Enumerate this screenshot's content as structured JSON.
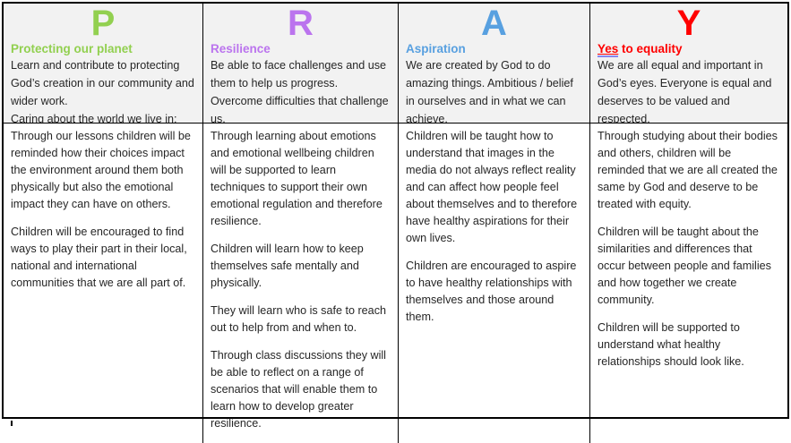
{
  "page": {
    "background": "#FFFFFF",
    "border_color": "#000000",
    "header_bg": "#F2F2F2",
    "text_color": "#262626",
    "grammar_underline_color": "#8888EE"
  },
  "table": {
    "columns": [
      {
        "id": "p",
        "letter": "P",
        "color": "#92D050",
        "title_underlined": "",
        "title": "Protecting our planet",
        "header_lines": [
          "Learn and contribute to protecting God’s creation in our community and wider work.",
          "Caring about the world we live in;"
        ],
        "body_paragraphs": [
          "Through our lessons children will be reminded how their choices impact the environment around them both physically but also the emotional impact they can have on others.",
          "Children will be encouraged to find ways to play their part in their local, national and international communities that we are all part of."
        ]
      },
      {
        "id": "r",
        "letter": "R",
        "color": "#BB74EE",
        "title_underlined": "",
        "title": "Resilience",
        "header_lines": [
          "Be able to face challenges and use them to help us progress. Overcome difficulties that challenge us."
        ],
        "body_paragraphs": [
          "Through learning about emotions and emotional wellbeing children will be supported to learn techniques to support their own emotional regulation and therefore resilience.",
          "Children will learn how to keep themselves safe mentally and physically.",
          "They will learn who is safe to reach out to help from and when to.",
          "Through class discussions they will be able to reflect on a range of scenarios that will enable them to learn how to develop greater resilience."
        ]
      },
      {
        "id": "a",
        "letter": "A",
        "color": "#58A0E0",
        "title_underlined": "",
        "title": "Aspiration",
        "header_lines": [
          "We are created by God to do amazing things. Ambitious / belief in ourselves and in what we can achieve."
        ],
        "body_paragraphs": [
          "Children will be taught how to understand that images in the media do not always reflect reality and can affect how people feel about themselves and to therefore have healthy aspirations for their own lives.",
          "Children are encouraged to aspire to have healthy relationships with themselves and those around them."
        ]
      },
      {
        "id": "y",
        "letter": "Y",
        "color": "#FF0000",
        "title_underlined": "Yes",
        "title": " to equality",
        "header_lines": [
          "We are all equal and important in God’s eyes. Everyone is equal and deserves to be valued and respected."
        ],
        "body_paragraphs": [
          "Through studying about their bodies and others, children will be reminded that we are all created the same by God and deserve to be treated with equity.",
          "Children will be taught about the similarities and differences that occur between people and families and how together we create community.",
          "Children will be supported to understand what healthy relationships should look like."
        ]
      }
    ]
  }
}
